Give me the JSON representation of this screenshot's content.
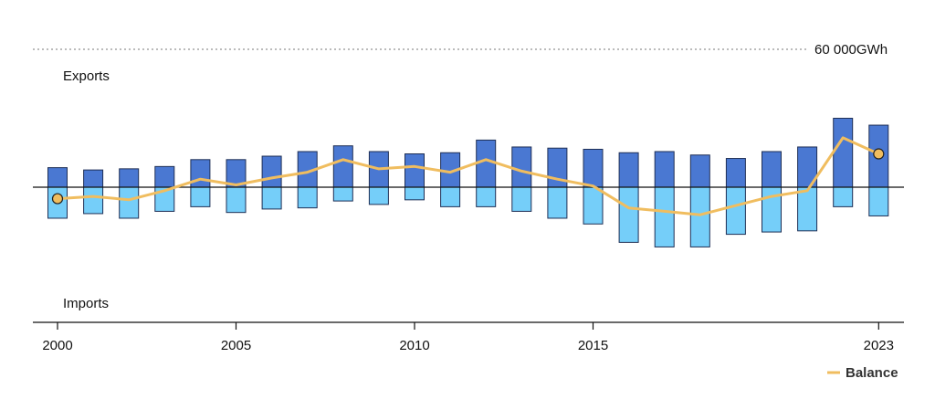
{
  "chart_data": {
    "type": "bar",
    "x": [
      2000,
      2001,
      2002,
      2003,
      2004,
      2005,
      2006,
      2007,
      2008,
      2009,
      2010,
      2011,
      2012,
      2013,
      2014,
      2015,
      2016,
      2017,
      2018,
      2019,
      2020,
      2021,
      2022,
      2023
    ],
    "series": [
      {
        "name": "",
        "role": "exports",
        "color": "#4a78d2",
        "values": [
          8500,
          7500,
          8000,
          9000,
          12000,
          12000,
          13500,
          15500,
          18000,
          15500,
          14500,
          15000,
          20500,
          17500,
          17000,
          16500,
          15000,
          15500,
          14000,
          12500,
          15500,
          17500,
          30000,
          27000
        ]
      },
      {
        "name": "",
        "role": "imports",
        "color": "#75cef9",
        "values": [
          -13500,
          -11500,
          -13500,
          -10500,
          -8500,
          -11000,
          -9500,
          -9000,
          -6000,
          -7500,
          -5500,
          -8500,
          -8500,
          -10500,
          -13500,
          -16000,
          -24000,
          -26000,
          -26000,
          -20500,
          -19500,
          -19000,
          -8500,
          -12500
        ]
      },
      {
        "name": "Balance",
        "role": "balance",
        "color": "#f0bd5f",
        "values": [
          -5000,
          -4000,
          -5500,
          -1500,
          3500,
          1000,
          4000,
          6500,
          12000,
          8000,
          9000,
          6500,
          12000,
          7000,
          3500,
          500,
          -9000,
          -10500,
          -12000,
          -8000,
          -4000,
          -1500,
          21500,
          14500
        ]
      }
    ],
    "tick_labels": [
      "2000",
      "2005",
      "2010",
      "2015",
      "2023"
    ],
    "tick_years": [
      2000,
      2005,
      2010,
      2015,
      2023
    ],
    "ylim": [
      -65000,
      65000
    ],
    "reference_line": {
      "value": 60000,
      "label": "60 000GWh"
    },
    "labels": {
      "top": "Exports",
      "bottom": "Imports"
    },
    "legend": {
      "label": "Balance",
      "position": "bottom-right"
    },
    "highlight_points": [
      2000,
      2023
    ]
  }
}
